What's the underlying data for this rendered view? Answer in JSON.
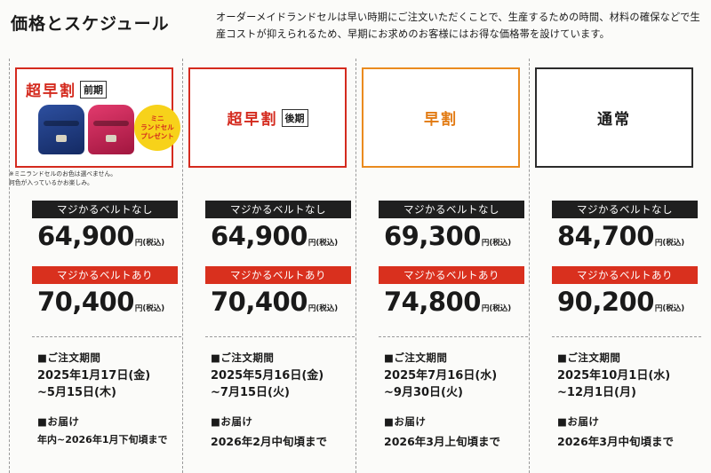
{
  "header": {
    "title": "価格とスケジュール",
    "intro": "オーダーメイドランドセルは早い時期にご注文いただくことで、生産するための時間、材料の確保などで生産コストが抑えられるため、早期にお求めのお客様にはお得な価格帯を設けています。"
  },
  "labels": {
    "no_belt": "マジかるベルトなし",
    "with_belt": "マジかるベルトあり",
    "yen_tax": "円(税込)",
    "order_period": "■ご注文期間",
    "delivery": "■お届け"
  },
  "plans": [
    {
      "name": "超早割",
      "tag": "前期",
      "present": [
        "ミニ",
        "ランドセル",
        "プレゼント"
      ],
      "note": [
        "※ミニランドセルのお色は選べません。",
        "何色が入っているかお楽しみ。"
      ],
      "price_no_belt": "64,900",
      "price_with_belt": "70,400",
      "period_start": "2025年1月17日(金)",
      "period_end": "~5月15日(木)",
      "delivery": "年内~2026年1月下旬頃まで"
    },
    {
      "name": "超早割",
      "tag": "後期",
      "price_no_belt": "64,900",
      "price_with_belt": "70,400",
      "period_start": "2025年5月16日(金)",
      "period_end": "~7月15日(火)",
      "delivery": "2026年2月中旬頃まで"
    },
    {
      "name": "早割",
      "price_no_belt": "69,300",
      "price_with_belt": "74,800",
      "period_start": "2025年7月16日(水)",
      "period_end": "~9月30日(火)",
      "delivery": "2026年3月上旬頃まで"
    },
    {
      "name": "通常",
      "price_no_belt": "84,700",
      "price_with_belt": "90,200",
      "period_start": "2025年10月1日(水)",
      "period_end": "~12月1日(月)",
      "delivery": "2026年3月中旬頃まで"
    }
  ],
  "colors": {
    "accent_red": "#d42a1e",
    "accent_orange": "#ea8b1f",
    "bar_black": "#1f1f1f",
    "bar_red": "#d9301e",
    "present_yellow": "#f7d21a"
  }
}
